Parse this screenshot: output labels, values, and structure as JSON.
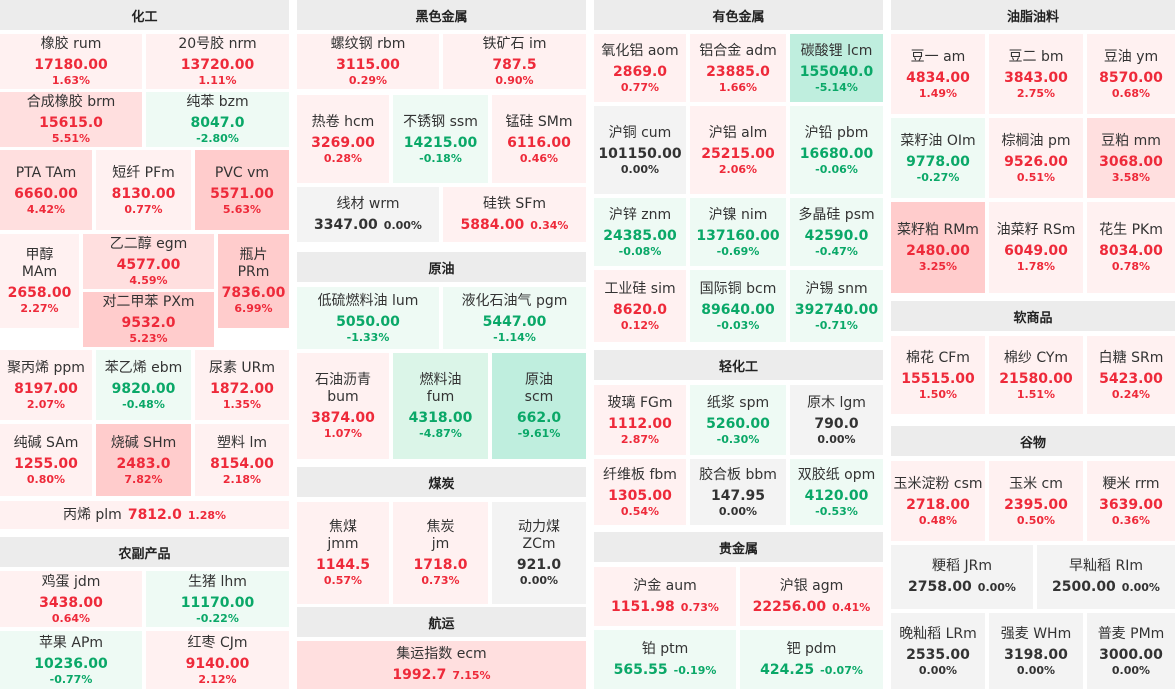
{
  "colors": {
    "up": "#ee2a3a",
    "down": "#0aa868",
    "flat": "#333333",
    "header_bg": "#ececec"
  },
  "sections": {
    "chem": "化工",
    "ferrous": "黑色金属",
    "nonferrous": "有色金属",
    "oils": "油脂油料",
    "crude": "原油",
    "agri": "农副产品",
    "coal": "煤炭",
    "light": "轻化工",
    "soft": "软商品",
    "grain": "谷物",
    "shipping": "航运",
    "precious": "贵金属"
  },
  "tiles": [
    {
      "id": "rum",
      "name": "橡胶  rum",
      "price": "17180.00",
      "pct": "1.63%"
    },
    {
      "id": "nrm",
      "name": "20号胶  nrm",
      "price": "13720.00",
      "pct": "1.11%"
    },
    {
      "id": "brm",
      "name": "合成橡胶  brm",
      "price": "15615.0",
      "pct": "5.51%"
    },
    {
      "id": "bzm",
      "name": "纯苯  bzm",
      "price": "8047.0",
      "pct": "-2.80%"
    },
    {
      "id": "tam",
      "name": "PTA  TAm",
      "price": "6660.00",
      "pct": "4.42%"
    },
    {
      "id": "pfm",
      "name": "短纤  PFm",
      "price": "8130.00",
      "pct": "0.77%"
    },
    {
      "id": "vm",
      "name": "PVC  vm",
      "price": "5571.00",
      "pct": "5.63%"
    },
    {
      "id": "mam",
      "name": "甲醇\nMAm",
      "price": "2658.00",
      "pct": "2.27%"
    },
    {
      "id": "egm",
      "name": "乙二醇  egm",
      "price": "4577.00",
      "pct": "4.59%"
    },
    {
      "id": "pxm",
      "name": "对二甲苯  PXm",
      "price": "9532.0",
      "pct": "5.23%"
    },
    {
      "id": "prm",
      "name": "瓶片\nPRm",
      "price": "7836.00",
      "pct": "6.99%"
    },
    {
      "id": "ppm",
      "name": "聚丙烯  ppm",
      "price": "8197.00",
      "pct": "2.07%"
    },
    {
      "id": "ebm",
      "name": "苯乙烯  ebm",
      "price": "9820.00",
      "pct": "-0.48%"
    },
    {
      "id": "urm",
      "name": "尿素  URm",
      "price": "1872.00",
      "pct": "1.35%"
    },
    {
      "id": "sam",
      "name": "纯碱  SAm",
      "price": "1255.00",
      "pct": "0.80%"
    },
    {
      "id": "shm",
      "name": "烧碱  SHm",
      "price": "2483.0",
      "pct": "7.82%"
    },
    {
      "id": "lm",
      "name": "塑料  lm",
      "price": "8154.00",
      "pct": "2.18%"
    },
    {
      "id": "plm",
      "name": "丙烯  plm",
      "price": "7812.0",
      "pct": "1.28%"
    },
    {
      "id": "jdm",
      "name": "鸡蛋  jdm",
      "price": "3438.00",
      "pct": "0.64%"
    },
    {
      "id": "lhm",
      "name": "生猪  lhm",
      "price": "11170.00",
      "pct": "-0.22%"
    },
    {
      "id": "apm",
      "name": "苹果  APm",
      "price": "10236.00",
      "pct": "-0.77%"
    },
    {
      "id": "cjm",
      "name": "红枣  CJm",
      "price": "9140.00",
      "pct": "2.12%"
    },
    {
      "id": "rbm",
      "name": "螺纹钢  rbm",
      "price": "3115.00",
      "pct": "0.29%"
    },
    {
      "id": "im",
      "name": "铁矿石  im",
      "price": "787.5",
      "pct": "0.90%"
    },
    {
      "id": "hcm",
      "name": "热卷  hcm",
      "price": "3269.00",
      "pct": "0.28%"
    },
    {
      "id": "ssm",
      "name": "不锈钢  ssm",
      "price": "14215.00",
      "pct": "-0.18%"
    },
    {
      "id": "smm",
      "name": "锰硅  SMm",
      "price": "6116.00",
      "pct": "0.46%"
    },
    {
      "id": "wrm",
      "name": "线材  wrm",
      "price": "3347.00",
      "pct": "0.00%"
    },
    {
      "id": "sfm",
      "name": "硅铁  SFm",
      "price": "5884.00",
      "pct": "0.34%"
    },
    {
      "id": "lum",
      "name": "低硫燃料油  lum",
      "price": "5050.00",
      "pct": "-1.33%"
    },
    {
      "id": "pgm",
      "name": "液化石油气  pgm",
      "price": "5447.00",
      "pct": "-1.14%"
    },
    {
      "id": "bum",
      "name": "石油沥青\nbum",
      "price": "3874.00",
      "pct": "1.07%"
    },
    {
      "id": "fum",
      "name": "燃料油\nfum",
      "price": "4318.00",
      "pct": "-4.87%"
    },
    {
      "id": "scm",
      "name": "原油\nscm",
      "price": "662.0",
      "pct": "-9.61%"
    },
    {
      "id": "jmm",
      "name": "焦煤\njmm",
      "price": "1144.5",
      "pct": "0.57%"
    },
    {
      "id": "jm",
      "name": "焦炭\njm",
      "price": "1718.0",
      "pct": "0.73%"
    },
    {
      "id": "zcm",
      "name": "动力煤\nZCm",
      "price": "921.0",
      "pct": "0.00%"
    },
    {
      "id": "ecm",
      "name": "集运指数  ecm",
      "price": "1992.7",
      "pct": "7.15%"
    },
    {
      "id": "aom",
      "name": "氧化铝  aom",
      "price": "2869.0",
      "pct": "0.77%"
    },
    {
      "id": "adm",
      "name": "铝合金  adm",
      "price": "23885.0",
      "pct": "1.66%"
    },
    {
      "id": "lcm",
      "name": "碳酸锂  lcm",
      "price": "155040.0",
      "pct": "-5.14%"
    },
    {
      "id": "cum",
      "name": "沪铜  cum",
      "price": "101150.00",
      "pct": "0.00%"
    },
    {
      "id": "alm",
      "name": "沪铝  alm",
      "price": "25215.00",
      "pct": "2.06%"
    },
    {
      "id": "pbm",
      "name": "沪铅  pbm",
      "price": "16680.00",
      "pct": "-0.06%"
    },
    {
      "id": "znm",
      "name": "沪锌  znm",
      "price": "24385.00",
      "pct": "-0.08%"
    },
    {
      "id": "nim",
      "name": "沪镍  nim",
      "price": "137160.00",
      "pct": "-0.69%"
    },
    {
      "id": "psm",
      "name": "多晶硅  psm",
      "price": "42590.0",
      "pct": "-0.47%"
    },
    {
      "id": "sim",
      "name": "工业硅  sim",
      "price": "8620.0",
      "pct": "0.12%"
    },
    {
      "id": "bcm",
      "name": "国际铜  bcm",
      "price": "89640.00",
      "pct": "-0.03%"
    },
    {
      "id": "snm",
      "name": "沪锡  snm",
      "price": "392740.00",
      "pct": "-0.71%"
    },
    {
      "id": "fgm",
      "name": "玻璃  FGm",
      "price": "1112.00",
      "pct": "2.87%"
    },
    {
      "id": "spm",
      "name": "纸浆  spm",
      "price": "5260.00",
      "pct": "-0.30%"
    },
    {
      "id": "lgm",
      "name": "原木  lgm",
      "price": "790.0",
      "pct": "0.00%"
    },
    {
      "id": "fbm",
      "name": "纤维板  fbm",
      "price": "1305.00",
      "pct": "0.54%"
    },
    {
      "id": "bbm",
      "name": "胶合板  bbm",
      "price": "147.95",
      "pct": "0.00%"
    },
    {
      "id": "opm",
      "name": "双胶纸  opm",
      "price": "4120.00",
      "pct": "-0.53%"
    },
    {
      "id": "aum",
      "name": "沪金  aum",
      "price": "1151.98",
      "pct": "0.73%"
    },
    {
      "id": "agm",
      "name": "沪银  agm",
      "price": "22256.00",
      "pct": "0.41%"
    },
    {
      "id": "ptm",
      "name": "铂  ptm",
      "price": "565.55",
      "pct": "-0.19%"
    },
    {
      "id": "pdm",
      "name": "钯  pdm",
      "price": "424.25",
      "pct": "-0.07%"
    },
    {
      "id": "am",
      "name": "豆一  am",
      "price": "4834.00",
      "pct": "1.49%"
    },
    {
      "id": "bm",
      "name": "豆二  bm",
      "price": "3843.00",
      "pct": "2.75%"
    },
    {
      "id": "ym",
      "name": "豆油  ym",
      "price": "8570.00",
      "pct": "0.68%"
    },
    {
      "id": "olm",
      "name": "菜籽油  OIm",
      "price": "9778.00",
      "pct": "-0.27%"
    },
    {
      "id": "pm",
      "name": "棕榈油  pm",
      "price": "9526.00",
      "pct": "0.51%"
    },
    {
      "id": "mm",
      "name": "豆粕  mm",
      "price": "3068.00",
      "pct": "3.58%"
    },
    {
      "id": "rmm",
      "name": "菜籽粕  RMm",
      "price": "2480.00",
      "pct": "3.25%"
    },
    {
      "id": "rsm",
      "name": "油菜籽  RSm",
      "price": "6049.00",
      "pct": "1.78%"
    },
    {
      "id": "pkm",
      "name": "花生  PKm",
      "price": "8034.00",
      "pct": "0.78%"
    },
    {
      "id": "cfm",
      "name": "棉花  CFm",
      "price": "15515.00",
      "pct": "1.50%"
    },
    {
      "id": "cym",
      "name": "棉纱  CYm",
      "price": "21580.00",
      "pct": "1.51%"
    },
    {
      "id": "srm",
      "name": "白糖  SRm",
      "price": "5423.00",
      "pct": "0.24%"
    },
    {
      "id": "csm",
      "name": "玉米淀粉  csm",
      "price": "2718.00",
      "pct": "0.48%"
    },
    {
      "id": "cm",
      "name": "玉米  cm",
      "price": "2395.00",
      "pct": "0.50%"
    },
    {
      "id": "rrm",
      "name": "粳米  rrm",
      "price": "3639.00",
      "pct": "0.36%"
    },
    {
      "id": "jrm",
      "name": "粳稻  JRm",
      "price": "2758.00",
      "pct": "0.00%"
    },
    {
      "id": "rim",
      "name": "早籼稻  RIm",
      "price": "2500.00",
      "pct": "0.00%"
    },
    {
      "id": "lrm",
      "name": "晚籼稻  LRm",
      "price": "2535.00",
      "pct": "0.00%"
    },
    {
      "id": "whm",
      "name": "强麦  WHm",
      "price": "3198.00",
      "pct": "0.00%"
    },
    {
      "id": "pmm",
      "name": "普麦  PMm",
      "price": "3000.00",
      "pct": "0.00%"
    }
  ]
}
